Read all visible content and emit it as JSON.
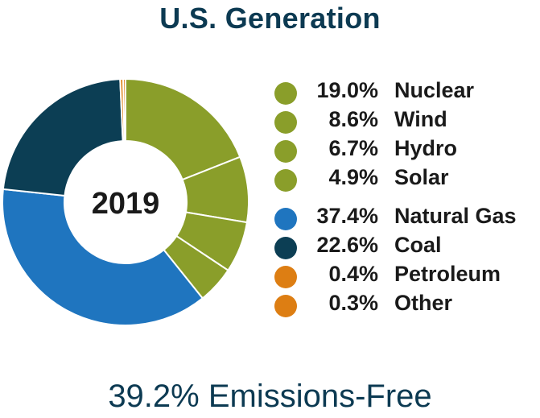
{
  "chart_data": {
    "type": "pie",
    "title": "U.S. Generation",
    "center_label": "2019",
    "slices": [
      {
        "label": "Nuclear",
        "value": 19.0,
        "display": "19.0%",
        "color": "#8a9e2a"
      },
      {
        "label": "Wind",
        "value": 8.6,
        "display": "8.6%",
        "color": "#8a9e2a"
      },
      {
        "label": "Hydro",
        "value": 6.7,
        "display": "6.7%",
        "color": "#8a9e2a"
      },
      {
        "label": "Solar",
        "value": 4.9,
        "display": "4.9%",
        "color": "#8a9e2a"
      },
      {
        "label": "Natural Gas",
        "value": 37.4,
        "display": "37.4%",
        "color": "#1f75bf"
      },
      {
        "label": "Coal",
        "value": 22.6,
        "display": "22.6%",
        "color": "#0c3e54"
      },
      {
        "label": "Petroleum",
        "value": 0.4,
        "display": "0.4%",
        "color": "#dd7e13"
      },
      {
        "label": "Other",
        "value": 0.3,
        "display": "0.3%",
        "color": "#dd7e13"
      }
    ],
    "legend_position": "right",
    "footer": "39.2% Emissions-Free"
  }
}
